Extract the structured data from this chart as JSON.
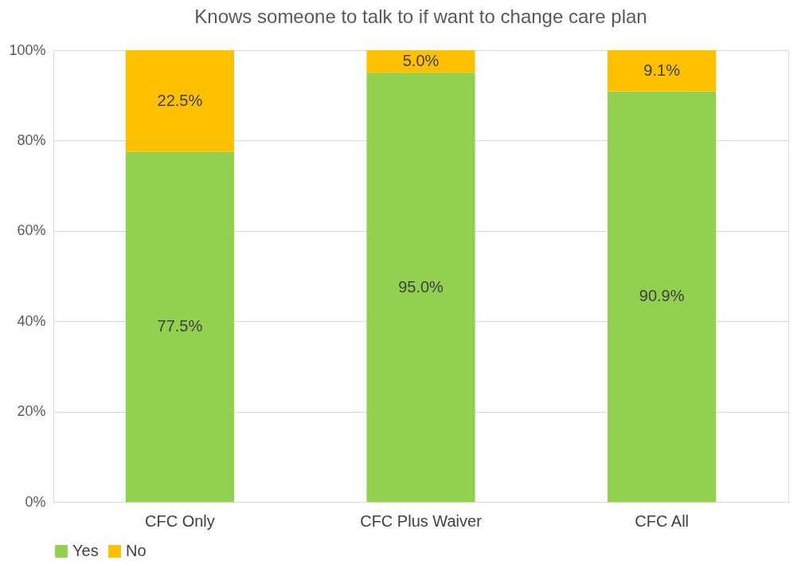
{
  "chart_data": {
    "type": "bar",
    "title": "Knows someone to talk to if want to change care plan",
    "categories": [
      "CFC Only",
      "CFC Plus Waiver",
      "CFC All"
    ],
    "stacked": true,
    "series": [
      {
        "name": "Yes",
        "color": "#92d050",
        "values": [
          77.5,
          95.0,
          90.9
        ],
        "value_labels": [
          "77.5%",
          "95.0%",
          "90.9%"
        ]
      },
      {
        "name": "No",
        "color": "#ffc000",
        "values": [
          22.5,
          5.0,
          9.1
        ],
        "value_labels": [
          "22.5%",
          "5.0%",
          "9.1%"
        ]
      }
    ],
    "ylim": [
      0,
      100
    ],
    "yticks": [
      {
        "value": 0,
        "label": "0%"
      },
      {
        "value": 20,
        "label": "20%"
      },
      {
        "value": 40,
        "label": "40%"
      },
      {
        "value": 60,
        "label": "60%"
      },
      {
        "value": 80,
        "label": "80%"
      },
      {
        "value": 100,
        "label": "100%"
      }
    ],
    "grid": "y",
    "legend": "bottom"
  }
}
